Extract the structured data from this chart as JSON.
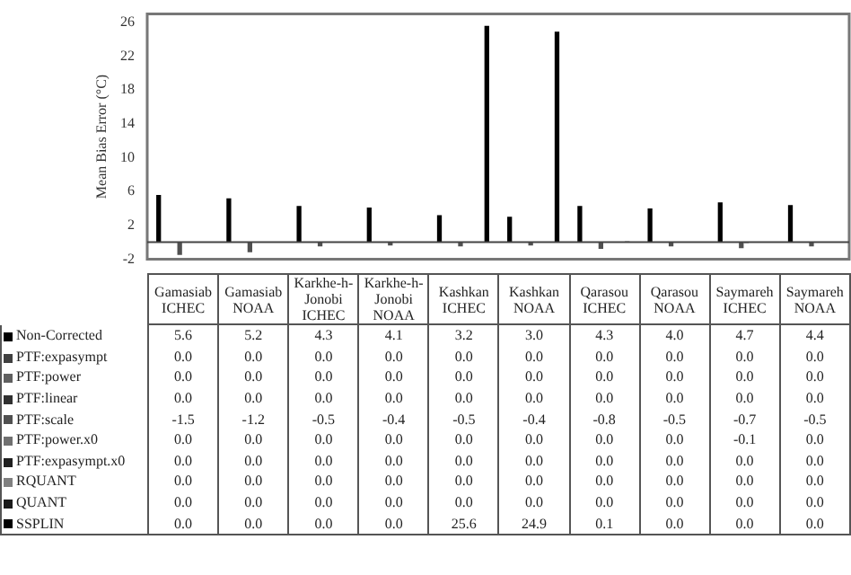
{
  "chart_data": {
    "type": "bar",
    "ylabel": "Mean Bias Error (°C)",
    "categories": [
      "Gamasiab ICHEC",
      "Gamasiab NOAA",
      "Karkhe-h-Jonobi ICHEC",
      "Karkhe-h-Jonobi NOAA",
      "Kashkan ICHEC",
      "Kashkan NOAA",
      "Qarasou ICHEC",
      "Qarasou NOAA",
      "Saymareh ICHEC",
      "Saymareh NOAA"
    ],
    "series": [
      {
        "name": "Non-Corrected",
        "color": "#000000",
        "values": [
          5.6,
          5.2,
          4.3,
          4.1,
          3.2,
          3.0,
          4.3,
          4.0,
          4.7,
          4.4
        ],
        "value_labels": [
          "5.6",
          "5.2",
          "4.3",
          "4.1",
          "3.2",
          "3.0",
          "4.3",
          "4.0",
          "4.7",
          "4.4"
        ]
      },
      {
        "name": "PTF:expasympt",
        "color": "#404040",
        "values": [
          0.0,
          0.0,
          0.0,
          0.0,
          0.0,
          0.0,
          0.0,
          0.0,
          0.0,
          0.0
        ],
        "value_labels": [
          "0.0",
          "0.0",
          "0.0",
          "0.0",
          "0.0",
          "0.0",
          "0.0",
          "0.0",
          "0.0",
          "0.0"
        ]
      },
      {
        "name": "PTF:power",
        "color": "#606060",
        "values": [
          0.0,
          0.0,
          0.0,
          0.0,
          0.0,
          0.0,
          0.0,
          0.0,
          0.0,
          0.0
        ],
        "value_labels": [
          "0.0",
          "0.0",
          "0.0",
          "0.0",
          "0.0",
          "0.0",
          "0.0",
          "0.0",
          "0.0",
          "0.0"
        ]
      },
      {
        "name": "PTF:linear",
        "color": "#303030",
        "values": [
          0.0,
          0.0,
          0.0,
          0.0,
          0.0,
          0.0,
          0.0,
          0.0,
          0.0,
          0.0
        ],
        "value_labels": [
          "0.0",
          "0.0",
          "0.0",
          "0.0",
          "0.0",
          "0.0",
          "0.0",
          "0.0",
          "0.0",
          "0.0"
        ]
      },
      {
        "name": "PTF:scale",
        "color": "#505050",
        "values": [
          -1.5,
          -1.2,
          -0.5,
          -0.4,
          -0.5,
          -0.4,
          -0.8,
          -0.5,
          -0.7,
          -0.5
        ],
        "value_labels": [
          "-1.5",
          "-1.2",
          "-0.5",
          "-0.4",
          "-0.5",
          "-0.4",
          "-0.8",
          "-0.5",
          "-0.7",
          "-0.5"
        ]
      },
      {
        "name": "PTF:power.x0",
        "color": "#707070",
        "values": [
          0.0,
          0.0,
          0.0,
          0.0,
          0.0,
          0.0,
          0.0,
          0.0,
          -0.1,
          0.0
        ],
        "value_labels": [
          "0.0",
          "0.0",
          "0.0",
          "0.0",
          "0.0",
          "0.0",
          "0.0",
          "0.0",
          "-0.1",
          "0.0"
        ]
      },
      {
        "name": "PTF:expasympt.x0",
        "color": "#202020",
        "values": [
          0.0,
          0.0,
          0.0,
          0.0,
          0.0,
          0.0,
          0.0,
          0.0,
          0.0,
          0.0
        ],
        "value_labels": [
          "0.0",
          "0.0",
          "0.0",
          "0.0",
          "0.0",
          "0.0",
          "0.0",
          "0.0",
          "0.0",
          "0.0"
        ]
      },
      {
        "name": "RQUANT",
        "color": "#808080",
        "values": [
          0.0,
          0.0,
          0.0,
          0.0,
          0.0,
          0.0,
          0.0,
          0.0,
          0.0,
          0.0
        ],
        "value_labels": [
          "0.0",
          "0.0",
          "0.0",
          "0.0",
          "0.0",
          "0.0",
          "0.0",
          "0.0",
          "0.0",
          "0.0"
        ]
      },
      {
        "name": "QUANT",
        "color": "#1a1a1a",
        "values": [
          0.0,
          0.0,
          0.0,
          0.0,
          0.0,
          0.0,
          0.0,
          0.0,
          0.0,
          0.0
        ],
        "value_labels": [
          "0.0",
          "0.0",
          "0.0",
          "0.0",
          "0.0",
          "0.0",
          "0.0",
          "0.0",
          "0.0",
          "0.0"
        ]
      },
      {
        "name": "SSPLIN",
        "color": "#000000",
        "values": [
          0.0,
          0.0,
          0.0,
          0.0,
          25.6,
          24.9,
          0.1,
          0.0,
          0.0,
          0.0
        ],
        "value_labels": [
          "0.0",
          "0.0",
          "0.0",
          "0.0",
          "25.6",
          "24.9",
          "0.1",
          "0.0",
          "0.0",
          "0.0"
        ]
      }
    ],
    "ylim": [
      -2,
      27
    ],
    "yticks": [
      -2,
      2,
      6,
      10,
      14,
      18,
      22,
      26
    ],
    "grid": false,
    "legend": "bottom",
    "tick_labels": "y"
  }
}
